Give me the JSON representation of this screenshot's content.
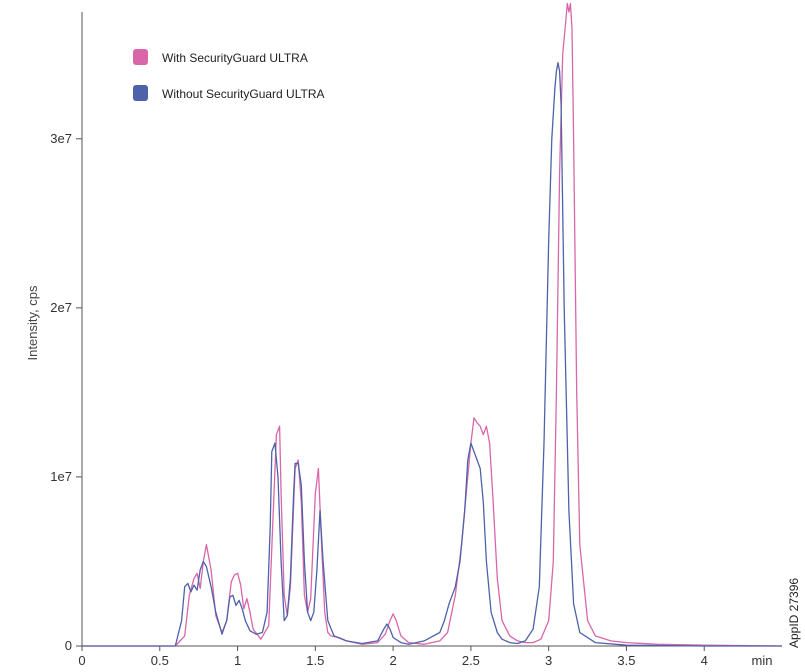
{
  "chart_data": {
    "type": "line",
    "ylabel": "Intensity, cps",
    "xunit": "min",
    "xlim": [
      0,
      4.5
    ],
    "ylim": [
      0,
      37500000
    ],
    "xticks": [
      0,
      0.5,
      1,
      1.5,
      2,
      2.5,
      3,
      3.5,
      4
    ],
    "xtick_labels": [
      "0",
      "0.5",
      "1",
      "1.5",
      "2",
      "2.5",
      "3",
      "3.5",
      "4"
    ],
    "yticks": [
      0,
      10000000,
      20000000,
      30000000
    ],
    "ytick_labels": [
      "0",
      "1e7",
      "2e7",
      "3e7"
    ],
    "grid": false,
    "legend": "top-left",
    "series": [
      {
        "name": "With SecurityGuard ULTRA",
        "color": "#d966aa",
        "x": [
          0,
          0.6,
          0.66,
          0.69,
          0.72,
          0.74,
          0.76,
          0.78,
          0.8,
          0.83,
          0.86,
          0.9,
          0.93,
          0.96,
          0.98,
          1.0,
          1.02,
          1.04,
          1.06,
          1.08,
          1.1,
          1.15,
          1.2,
          1.23,
          1.25,
          1.27,
          1.28,
          1.3,
          1.32,
          1.34,
          1.37,
          1.39,
          1.41,
          1.43,
          1.45,
          1.47,
          1.5,
          1.52,
          1.54,
          1.56,
          1.58,
          1.6,
          1.65,
          1.7,
          1.8,
          1.9,
          1.95,
          1.98,
          2.0,
          2.02,
          2.05,
          2.1,
          2.2,
          2.3,
          2.35,
          2.4,
          2.44,
          2.47,
          2.5,
          2.52,
          2.54,
          2.56,
          2.58,
          2.6,
          2.62,
          2.64,
          2.67,
          2.7,
          2.75,
          2.8,
          2.85,
          2.9,
          2.95,
          3.0,
          3.03,
          3.05,
          3.07,
          3.09,
          3.11,
          3.12,
          3.13,
          3.14,
          3.15,
          3.16,
          3.18,
          3.2,
          3.25,
          3.3,
          3.4,
          3.5,
          3.7,
          4.0,
          4.5
        ],
        "values": [
          0,
          0,
          600000,
          3000000,
          4000000,
          4300000,
          3400000,
          5000000,
          6000000,
          4500000,
          1800000,
          800000,
          1500000,
          3800000,
          4200000,
          4300000,
          3600000,
          2200000,
          2800000,
          2000000,
          1000000,
          400000,
          1200000,
          8000000,
          12500000,
          13000000,
          9000000,
          3000000,
          1800000,
          3500000,
          10500000,
          11000000,
          8500000,
          3000000,
          2000000,
          2800000,
          9000000,
          10500000,
          6000000,
          2000000,
          800000,
          600000,
          500000,
          300000,
          100000,
          200000,
          700000,
          1500000,
          1900000,
          1500000,
          600000,
          200000,
          100000,
          300000,
          800000,
          3000000,
          6000000,
          9000000,
          12000000,
          13500000,
          13200000,
          13000000,
          12500000,
          13000000,
          12000000,
          9000000,
          4000000,
          1500000,
          600000,
          300000,
          200000,
          200000,
          400000,
          1500000,
          5000000,
          15000000,
          28000000,
          35000000,
          37000000,
          38000000,
          37500000,
          38000000,
          36500000,
          30000000,
          15000000,
          6000000,
          1500000,
          600000,
          300000,
          200000,
          100000,
          50000,
          0
        ]
      },
      {
        "name": "Without SecurityGuard ULTRA",
        "color": "#4d62a8",
        "x": [
          0,
          0.6,
          0.64,
          0.66,
          0.68,
          0.7,
          0.72,
          0.74,
          0.76,
          0.78,
          0.8,
          0.83,
          0.86,
          0.9,
          0.93,
          0.95,
          0.97,
          0.99,
          1.01,
          1.03,
          1.05,
          1.08,
          1.12,
          1.16,
          1.19,
          1.21,
          1.22,
          1.24,
          1.26,
          1.28,
          1.3,
          1.32,
          1.34,
          1.36,
          1.37,
          1.39,
          1.41,
          1.43,
          1.45,
          1.47,
          1.49,
          1.51,
          1.53,
          1.55,
          1.58,
          1.62,
          1.7,
          1.8,
          1.9,
          1.94,
          1.96,
          1.98,
          2.0,
          2.05,
          2.1,
          2.2,
          2.3,
          2.33,
          2.36,
          2.4,
          2.43,
          2.46,
          2.48,
          2.5,
          2.52,
          2.54,
          2.56,
          2.58,
          2.6,
          2.63,
          2.67,
          2.7,
          2.75,
          2.8,
          2.85,
          2.9,
          2.94,
          2.97,
          3.0,
          3.02,
          3.04,
          3.05,
          3.06,
          3.07,
          3.08,
          3.1,
          3.13,
          3.16,
          3.2,
          3.3,
          3.5,
          4.0,
          4.5
        ],
        "values": [
          0,
          0,
          1500000,
          3500000,
          3700000,
          3200000,
          3600000,
          3300000,
          4500000,
          5000000,
          4700000,
          3500000,
          2000000,
          700000,
          1500000,
          2900000,
          3000000,
          2400000,
          2700000,
          2200000,
          1500000,
          900000,
          700000,
          800000,
          2000000,
          7000000,
          11500000,
          12000000,
          10000000,
          5000000,
          1500000,
          1800000,
          4000000,
          9000000,
          10800000,
          10800000,
          9500000,
          5000000,
          2000000,
          1500000,
          2000000,
          4500000,
          8000000,
          5000000,
          1500000,
          600000,
          300000,
          150000,
          300000,
          1000000,
          1300000,
          1000000,
          500000,
          200000,
          100000,
          300000,
          800000,
          1500000,
          2500000,
          3500000,
          5000000,
          8000000,
          11000000,
          12000000,
          11500000,
          11000000,
          10500000,
          8500000,
          5000000,
          2000000,
          800000,
          400000,
          200000,
          150000,
          300000,
          1000000,
          3500000,
          12000000,
          24000000,
          30000000,
          33000000,
          34000000,
          34500000,
          34000000,
          32000000,
          20000000,
          8000000,
          2500000,
          800000,
          200000,
          50000,
          0,
          0
        ]
      }
    ]
  },
  "side_label": "AppID 27396"
}
